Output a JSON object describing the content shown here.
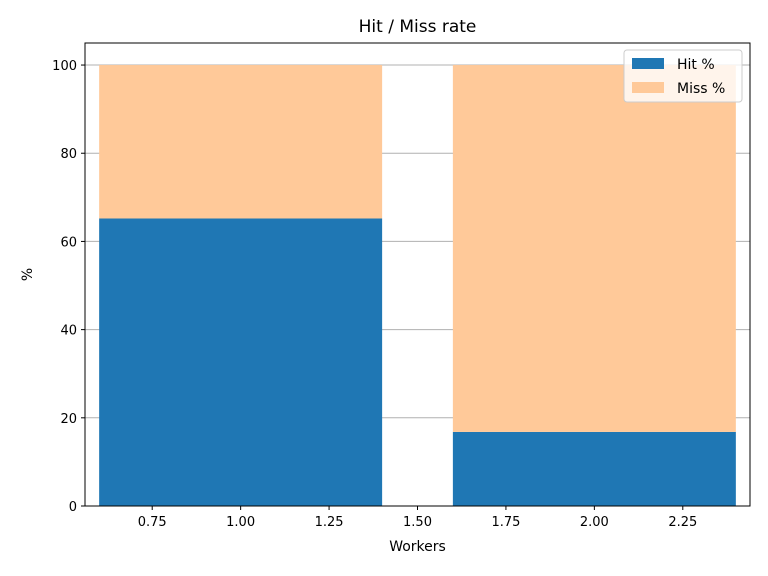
{
  "chart_data": {
    "type": "bar",
    "stacked": true,
    "title": "Hit / Miss rate",
    "xlabel": "Workers",
    "ylabel": "%",
    "x": [
      1,
      2
    ],
    "bar_width": 0.8,
    "series": [
      {
        "name": "Hit %",
        "values": [
          65.2,
          16.8
        ],
        "color": "#1f77b4"
      },
      {
        "name": "Miss %",
        "values": [
          34.8,
          83.2
        ],
        "color": "#ffc999"
      }
    ],
    "xlim": [
      0.56,
      2.44
    ],
    "ylim": [
      0,
      105
    ],
    "xticks": [
      "0.75",
      "1.00",
      "1.25",
      "1.50",
      "1.75",
      "2.00",
      "2.25"
    ],
    "yticks": [
      "0",
      "20",
      "40",
      "60",
      "80",
      "100"
    ],
    "grid": "y",
    "grid_color": "#b0b0b0",
    "legend": "top-right"
  }
}
